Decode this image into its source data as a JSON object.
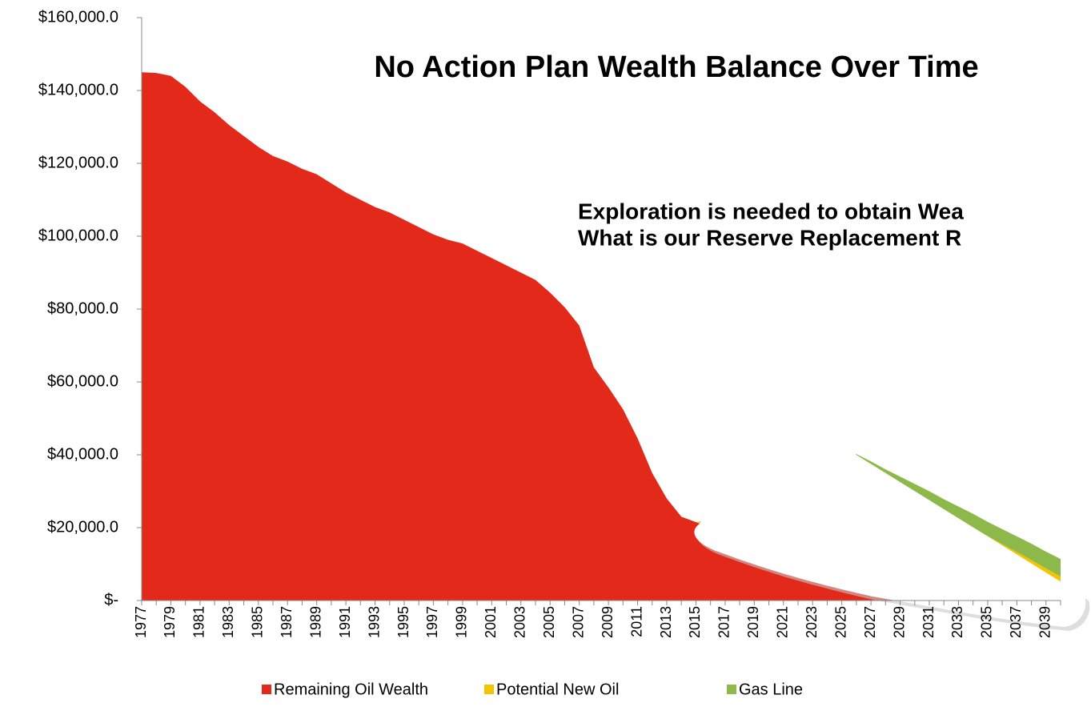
{
  "chart_data": {
    "type": "stacked_area",
    "title": "No Action Plan Wealth Balance Over Time",
    "annotations": [
      "Exploration is needed to obtain Wea",
      "What is our Reserve Replacement R"
    ],
    "categories": [
      "1977",
      null,
      "1979",
      null,
      "1981",
      null,
      "1983",
      null,
      "1985",
      null,
      "1987",
      null,
      "1989",
      null,
      "1991",
      null,
      "1993",
      null,
      "1995",
      null,
      "1997",
      null,
      "1999",
      null,
      "2001",
      null,
      "2003",
      null,
      "2005",
      null,
      "2007",
      null,
      "2009",
      null,
      "2011",
      null,
      "2013",
      null,
      "2015",
      null,
      "2017",
      null,
      "2019",
      null,
      "2021",
      null,
      "2023",
      null,
      "2025",
      null,
      "2027",
      null,
      "2029",
      null,
      "2031",
      null,
      "2033",
      null,
      "2035",
      null,
      "2037",
      null,
      "2039",
      null
    ],
    "series": [
      {
        "name": "Remaining Oil Wealth",
        "color": "#e2291a",
        "values": [
          145000,
          144800,
          144000,
          141000,
          137000,
          134000,
          130500,
          127500,
          124500,
          122000,
          120500,
          118500,
          117000,
          114500,
          112000,
          110000,
          108000,
          106500,
          104500,
          102500,
          100500,
          99000,
          98000,
          96000,
          94000,
          92000,
          90000,
          88000,
          84500,
          80500,
          75500,
          64000,
          58500,
          52500,
          44500,
          35000,
          28000,
          23000,
          21500,
          20000,
          17500,
          15500,
          12000,
          11000,
          10000,
          9000,
          7500,
          6000,
          5000,
          4000,
          3000,
          2200,
          1400,
          700,
          300,
          0,
          0,
          0,
          0,
          0,
          0,
          0,
          0,
          0
        ]
      },
      {
        "name": "Potential New Oil",
        "color": "#f5c400",
        "values": [
          0,
          0,
          0,
          0,
          0,
          0,
          0,
          0,
          0,
          0,
          0,
          0,
          0,
          0,
          0,
          0,
          0,
          0,
          0,
          0,
          0,
          0,
          0,
          0,
          0,
          0,
          0,
          0,
          0,
          0,
          0,
          0,
          0,
          0,
          0,
          0,
          0,
          0,
          0,
          2000,
          5000,
          9000,
          13000,
          17000,
          20000,
          23000,
          26000,
          29000,
          31500,
          33800,
          32600,
          31100,
          29700,
          28200,
          26400,
          24400,
          22200,
          20000,
          17700,
          15500,
          13300,
          11100,
          8800,
          6600
        ]
      },
      {
        "name": "Gas Line",
        "color": "#8db84a",
        "values": [
          0,
          0,
          0,
          0,
          0,
          0,
          0,
          0,
          0,
          0,
          0,
          0,
          0,
          0,
          0,
          0,
          0,
          0,
          0,
          0,
          0,
          0,
          0,
          0,
          0,
          0,
          0,
          0,
          0,
          0,
          0,
          0,
          0,
          0,
          0,
          0,
          0,
          0,
          0,
          200,
          450,
          700,
          900,
          1100,
          1300,
          1500,
          1800,
          2000,
          2200,
          2400,
          2600,
          2700,
          2900,
          3100,
          3300,
          3400,
          3600,
          3800,
          3900,
          4100,
          4300,
          4500,
          4600,
          4800
        ]
      }
    ],
    "ylim": [
      0,
      160000
    ],
    "yticks": [
      {
        "value": 0,
        "label": "$-"
      },
      {
        "value": 20000,
        "label": "$20,000.0"
      },
      {
        "value": 40000,
        "label": "$40,000.0"
      },
      {
        "value": 60000,
        "label": "$60,000.0"
      },
      {
        "value": 80000,
        "label": "$80,000.0"
      },
      {
        "value": 100000,
        "label": "$100,000.0"
      },
      {
        "value": 120000,
        "label": "$120,000.0"
      },
      {
        "value": 140000,
        "label": "$140,000.0"
      },
      {
        "value": 160000,
        "label": "$160,000.0"
      }
    ],
    "grid": false,
    "legend": "bottom"
  }
}
